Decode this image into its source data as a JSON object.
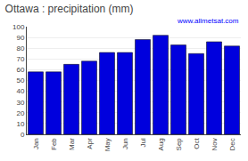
{
  "chart_data": {
    "type": "bar",
    "title": "Ottawa : precipitation (mm)",
    "categories": [
      "Jan",
      "Feb",
      "Mar",
      "Apr",
      "May",
      "Jun",
      "Jul",
      "Aug",
      "Sep",
      "Oct",
      "Nov",
      "Dec"
    ],
    "values": [
      58,
      58,
      65,
      68,
      76,
      76,
      88,
      92,
      83,
      75,
      86,
      82
    ],
    "color": "#0000dd",
    "ylim": [
      0,
      100
    ],
    "yticks": [
      0,
      10,
      20,
      30,
      40,
      50,
      60,
      70,
      80,
      90,
      100
    ],
    "grid": true,
    "annotations": [
      "www.allmetsat.com"
    ]
  }
}
